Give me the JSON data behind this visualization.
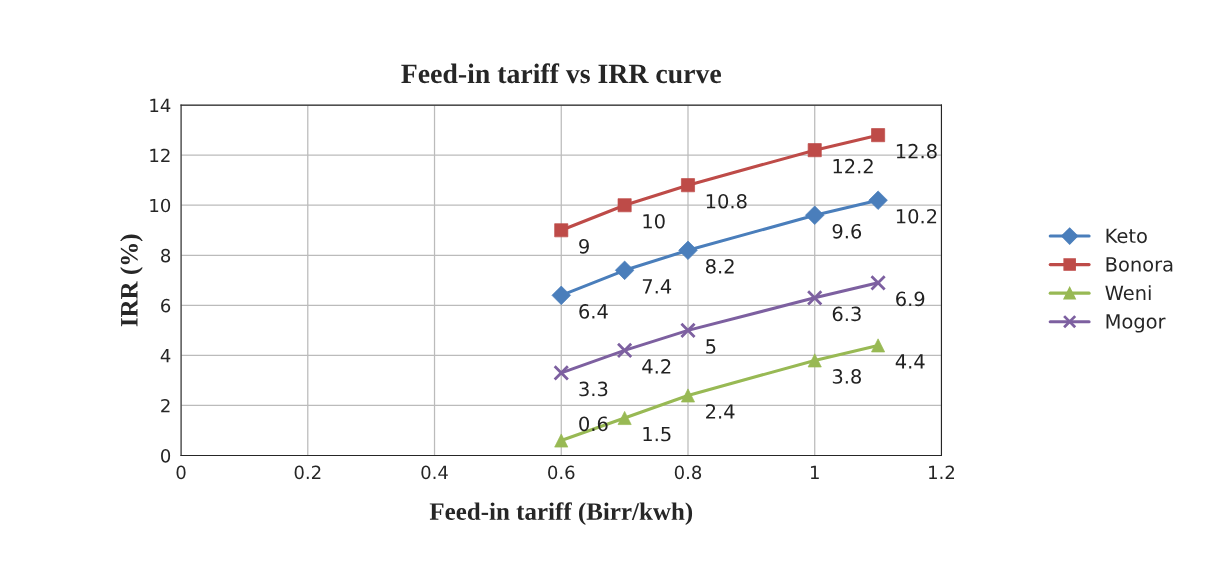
{
  "chart_data": {
    "type": "line",
    "title": "Feed-in tariff vs IRR curve",
    "xlabel": "Feed-in tariff (Birr/kwh)",
    "ylabel": "IRR (%)",
    "x": [
      0.6,
      0.7,
      0.8,
      1.0,
      1.1
    ],
    "series": [
      {
        "name": "Keto",
        "color": "#4a7ebb",
        "marker": "diamond",
        "values": [
          6.4,
          7.4,
          8.2,
          9.6,
          10.2
        ]
      },
      {
        "name": "Bonora",
        "color": "#be4b48",
        "marker": "square",
        "values": [
          9,
          10,
          10.8,
          12.2,
          12.8
        ]
      },
      {
        "name": "Weni",
        "color": "#98b954",
        "marker": "triangle",
        "values": [
          0.6,
          1.5,
          2.4,
          3.8,
          4.4
        ]
      },
      {
        "name": "Mogor",
        "color": "#7d60a0",
        "marker": "cross",
        "values": [
          3.3,
          4.2,
          5,
          6.3,
          6.9
        ]
      }
    ],
    "xlim": [
      0,
      1.2
    ],
    "xticks": [
      0,
      0.2,
      0.4,
      0.6,
      0.8,
      1,
      1.2
    ],
    "ylim": [
      0,
      14
    ],
    "yticks": [
      0,
      2,
      4,
      6,
      8,
      10,
      12,
      14
    ],
    "grid": true,
    "legend": "right",
    "data_labels": true
  }
}
